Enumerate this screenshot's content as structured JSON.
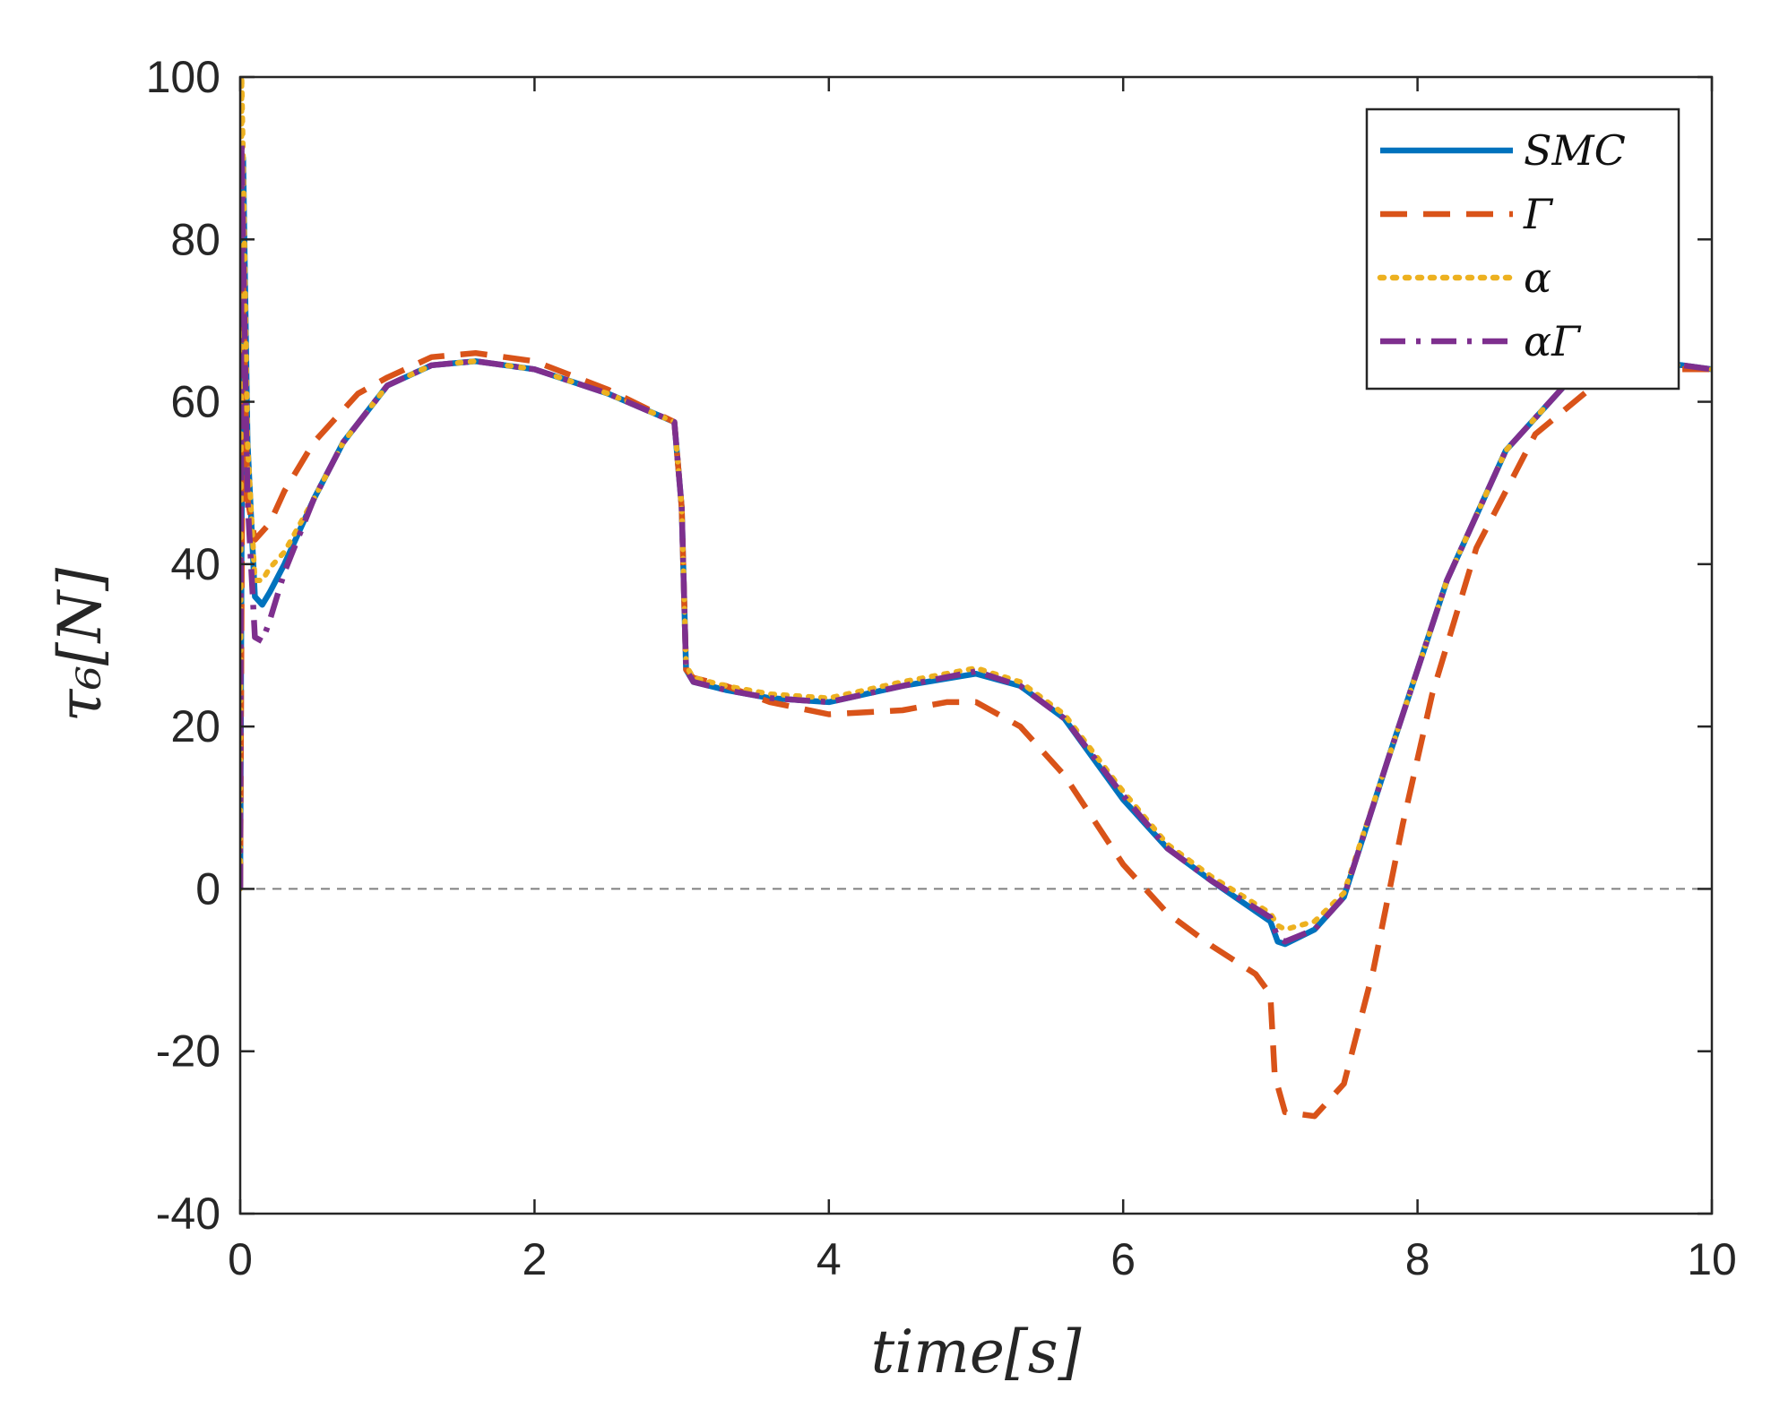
{
  "chart_data": {
    "type": "line",
    "title": "",
    "xlabel": "time[s]",
    "ylabel": "τ₆[N]",
    "xlim": [
      0,
      10
    ],
    "ylim": [
      -40,
      100
    ],
    "xticks": [
      0,
      2,
      4,
      6,
      8,
      10
    ],
    "yticks": [
      -40,
      -20,
      0,
      20,
      40,
      60,
      80,
      100
    ],
    "xtick_labels": [
      "0",
      "2",
      "4",
      "6",
      "8",
      "10"
    ],
    "ytick_labels": [
      "-40",
      "-20",
      "0",
      "20",
      "40",
      "60",
      "80",
      "100"
    ],
    "reference_line": {
      "y": 0,
      "style": "dashed",
      "color": "#808080"
    },
    "grid": false,
    "legend_position": "top-right",
    "series": [
      {
        "name": "SMC",
        "color": "#0072BD",
        "dash": "solid",
        "x": [
          0,
          0.02,
          0.05,
          0.1,
          0.15,
          0.2,
          0.3,
          0.5,
          0.7,
          1.0,
          1.3,
          1.6,
          2.0,
          2.5,
          2.95,
          3.0,
          3.03,
          3.08,
          3.3,
          3.6,
          4.0,
          4.5,
          5.0,
          5.3,
          5.6,
          6.0,
          6.3,
          6.6,
          7.0,
          7.02,
          7.05,
          7.1,
          7.3,
          7.5,
          7.8,
          8.2,
          8.6,
          9.0,
          9.4,
          9.8,
          10.0
        ],
        "y": [
          0,
          90,
          55,
          36,
          35,
          36.5,
          40,
          48,
          55,
          62,
          64.5,
          65,
          64,
          61,
          57.5,
          47,
          27,
          25.5,
          24.5,
          23.5,
          23,
          25,
          26.5,
          25,
          21,
          11,
          5,
          1,
          -4,
          -5,
          -6.5,
          -6.8,
          -5,
          -1,
          16,
          38,
          54,
          62,
          65,
          64.5,
          64
        ]
      },
      {
        "name": "Γ",
        "color": "#D95319",
        "dash": "dashed",
        "x": [
          0,
          0.02,
          0.05,
          0.1,
          0.2,
          0.3,
          0.5,
          0.8,
          1.0,
          1.3,
          1.6,
          2.0,
          2.5,
          2.95,
          3.0,
          3.03,
          3.08,
          3.3,
          3.6,
          4.0,
          4.5,
          4.8,
          5.0,
          5.3,
          5.6,
          6.0,
          6.3,
          6.6,
          6.9,
          7.0,
          7.03,
          7.1,
          7.3,
          7.5,
          7.7,
          7.9,
          8.1,
          8.4,
          8.8,
          9.2,
          9.6,
          10.0
        ],
        "y": [
          0,
          75,
          48,
          43,
          45,
          49,
          55,
          61,
          63,
          65.5,
          66,
          65,
          61.5,
          57.5,
          47,
          27,
          26,
          25,
          23,
          21.5,
          22,
          23,
          23,
          20,
          14,
          3,
          -3,
          -7,
          -10.5,
          -13,
          -23,
          -27.5,
          -28,
          -24,
          -10,
          8,
          24,
          42,
          56,
          62,
          64,
          64
        ]
      },
      {
        "name": "α",
        "color": "#EDB120",
        "dash": "dotted",
        "x": [
          0,
          0.01,
          0.02,
          0.05,
          0.1,
          0.15,
          0.2,
          0.3,
          0.5,
          0.7,
          1.0,
          1.3,
          1.6,
          2.0,
          2.5,
          2.95,
          3.0,
          3.03,
          3.08,
          3.3,
          3.6,
          4.0,
          4.5,
          5.0,
          5.3,
          5.6,
          6.0,
          6.3,
          6.6,
          7.0,
          7.05,
          7.1,
          7.3,
          7.5,
          7.8,
          8.2,
          8.6,
          9.0,
          9.4,
          9.8,
          10.0
        ],
        "y": [
          0,
          100,
          90,
          55,
          38,
          38,
          39.5,
          41.5,
          48,
          55,
          62,
          64.5,
          65,
          64,
          61,
          57.5,
          47,
          27.5,
          26,
          25,
          24,
          23.5,
          25.5,
          27.2,
          25.5,
          21.5,
          12,
          5.5,
          1.5,
          -3,
          -4.5,
          -5,
          -4,
          -0.5,
          16,
          38,
          54,
          62,
          65,
          64.5,
          64
        ]
      },
      {
        "name": "αΓ",
        "color": "#7E2F8E",
        "dash": "dashdot",
        "x": [
          0,
          0.01,
          0.02,
          0.05,
          0.1,
          0.15,
          0.2,
          0.3,
          0.5,
          0.7,
          1.0,
          1.3,
          1.6,
          2.0,
          2.5,
          2.95,
          3.0,
          3.03,
          3.08,
          3.3,
          3.6,
          4.0,
          4.5,
          5.0,
          5.3,
          5.6,
          6.0,
          6.3,
          6.6,
          7.0,
          7.02,
          7.05,
          7.1,
          7.3,
          7.5,
          7.8,
          8.2,
          8.6,
          9.0,
          9.4,
          9.8,
          10.0
        ],
        "y": [
          0,
          92,
          80,
          48,
          31,
          30.5,
          33,
          39,
          48,
          55,
          62,
          64.5,
          65,
          64,
          61,
          57.5,
          47,
          27,
          25.5,
          24.5,
          23.5,
          23,
          25,
          26.8,
          25,
          21,
          11.5,
          5,
          1,
          -3.5,
          -4.5,
          -6,
          -6.5,
          -5,
          -1,
          16,
          38,
          54,
          62,
          65,
          64.5,
          64
        ]
      }
    ]
  }
}
